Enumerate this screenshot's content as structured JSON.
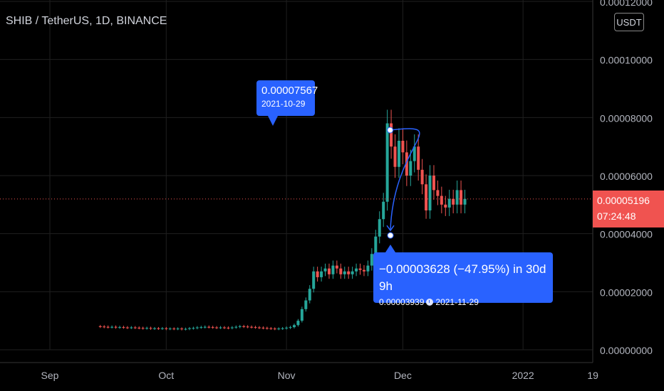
{
  "chart_data": {
    "type": "candlestick",
    "title": "SHIB / TetherUS, 1D, BINANCE",
    "currency_label": "USDT",
    "ylim": [
      0,
      0.00012
    ],
    "yticks": [
      "0.00000000",
      "0.00002000",
      "0.00004000",
      "0.00006000",
      "0.00008000",
      "0.00010000",
      "0.00012000"
    ],
    "ytick_values": [
      0,
      2e-05,
      4e-05,
      6e-05,
      8e-05,
      0.0001,
      0.00012
    ],
    "xticks": [
      {
        "label": "Sep",
        "day": 31
      },
      {
        "label": "Oct",
        "day": 61
      },
      {
        "label": "Nov",
        "day": 92
      },
      {
        "label": "Dec",
        "day": 122
      },
      {
        "label": "2022",
        "day": 153
      },
      {
        "label": "19",
        "day": 171
      }
    ],
    "day_start": 17,
    "day_end": 175,
    "current_price": {
      "value": "0.00005196",
      "countdown": "07:24:48",
      "numeric": 5.196e-05
    },
    "colors": {
      "up": "#26a69a",
      "down": "#ef5350",
      "accent": "#2962ff",
      "grid": "#1f1f1f",
      "current": "#f05350"
    },
    "close_series": [
      8e-06,
      7.9e-06,
      7.8e-06,
      7.9e-06,
      7.7e-06,
      7.8e-06,
      7.7e-06,
      7.6e-06,
      7.7e-06,
      7.6e-06,
      7.5e-06,
      7.4e-06,
      7.5e-06,
      7.3e-06,
      7.4e-06,
      7.3e-06,
      7.4e-06,
      7.2e-06,
      7.3e-06,
      7.2e-06,
      7.3e-06,
      7.1e-06,
      7.2e-06,
      7.4e-06,
      7.5e-06,
      7.7e-06,
      7.8e-06,
      7.9e-06,
      7.8e-06,
      7.7e-06,
      7.6e-06,
      7.7e-06,
      7.6e-06,
      7.5e-06,
      7.7e-06,
      7.9e-06,
      8.1e-06,
      8e-06,
      7.9e-06,
      7.8e-06,
      7.7e-06,
      7.6e-06,
      7.5e-06,
      7.4e-06,
      7.3e-06,
      7.2e-06,
      7.3e-06,
      7.4e-06,
      7.6e-06,
      7.8e-06,
      8.5e-06,
      1e-05,
      1.4e-05,
      1.7e-05,
      2.1e-05,
      2.7e-05,
      2.5e-05,
      2.7e-05,
      2.8e-05,
      2.6e-05,
      2.9e-05,
      2.8e-05,
      2.6e-05,
      2.7e-05,
      2.6e-05,
      2.7e-05,
      2.8e-05,
      2.75e-05,
      2.7e-05,
      2.9e-05,
      3.3e-05,
      3.9e-05,
      4.5e-05,
      5.1e-05,
      7.8e-05,
      7e-05,
      6.3e-05,
      7.2e-05,
      6.8e-05,
      6e-05,
      6.5e-05,
      7e-05,
      6.2e-05,
      5.7e-05,
      4.8e-05,
      6e-05,
      5.5e-05,
      5.3e-05,
      5e-05,
      4.9e-05,
      5.2e-05,
      5e-05,
      5.5e-05,
      5e-05,
      5.2e-05
    ],
    "annotations": [
      {
        "from": {
          "label_value": "0.00007567",
          "date": "2021-10-29",
          "price": 7.567e-05
        }
      },
      {
        "to": {
          "change": "−0.00003628 (−47.95%) in 30d 9h",
          "price_label": "0.00003939",
          "date": "2021-11-29",
          "price": 3.939e-05
        }
      }
    ]
  }
}
